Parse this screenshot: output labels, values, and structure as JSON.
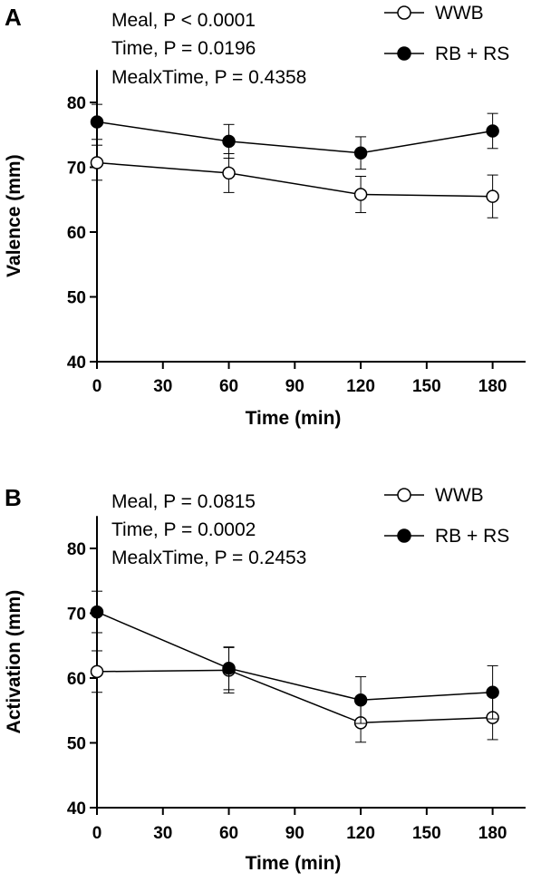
{
  "figure": {
    "panels": [
      {
        "id": "A",
        "stats": [
          "Meal, P < 0.0001",
          "Time, P = 0.0196",
          "MealxTime, P = 0.4358"
        ],
        "legend": [
          {
            "name": "WWB",
            "marker": "open-circle"
          },
          {
            "name": "RB + RS",
            "marker": "filled-circle"
          }
        ]
      },
      {
        "id": "B",
        "stats": [
          "Meal, P = 0.0815",
          "Time, P = 0.0002",
          "MealxTime, P = 0.2453"
        ],
        "legend": [
          {
            "name": "WWB",
            "marker": "open-circle"
          },
          {
            "name": "RB + RS",
            "marker": "filled-circle"
          }
        ]
      }
    ]
  },
  "chart_data": [
    {
      "type": "line",
      "title": "",
      "xlabel": "Time (min)",
      "ylabel": "Valence (mm)",
      "xlim": [
        0,
        195
      ],
      "ylim": [
        40,
        85
      ],
      "xticks": [
        0,
        30,
        60,
        90,
        120,
        150,
        180
      ],
      "yticks": [
        40,
        50,
        60,
        70,
        80
      ],
      "grid": false,
      "legend_position": "top-right",
      "x": [
        0,
        60,
        120,
        180
      ],
      "series": [
        {
          "name": "WWB",
          "marker": "open-circle",
          "values": [
            70.7,
            69.1,
            65.8,
            65.5
          ],
          "error": [
            2.7,
            3.0,
            2.8,
            3.3
          ]
        },
        {
          "name": "RB + RS",
          "marker": "filled-circle",
          "values": [
            77.0,
            74.0,
            72.2,
            75.6
          ],
          "error": [
            2.7,
            2.6,
            2.5,
            2.7
          ]
        }
      ]
    },
    {
      "type": "line",
      "title": "",
      "xlabel": "Time (min)",
      "ylabel": "Activation (mm)",
      "xlim": [
        0,
        195
      ],
      "ylim": [
        40,
        85
      ],
      "xticks": [
        0,
        30,
        60,
        90,
        120,
        150,
        180
      ],
      "yticks": [
        40,
        50,
        60,
        70,
        80
      ],
      "grid": false,
      "legend_position": "top-right",
      "x": [
        0,
        60,
        120,
        180
      ],
      "series": [
        {
          "name": "WWB",
          "marker": "open-circle",
          "values": [
            61.0,
            61.2,
            53.1,
            53.9
          ],
          "error": [
            3.2,
            3.5,
            3.0,
            3.4
          ]
        },
        {
          "name": "RB + RS",
          "marker": "filled-circle",
          "values": [
            70.2,
            61.5,
            56.6,
            57.8
          ],
          "error": [
            3.2,
            3.3,
            3.6,
            4.1
          ]
        }
      ]
    }
  ]
}
